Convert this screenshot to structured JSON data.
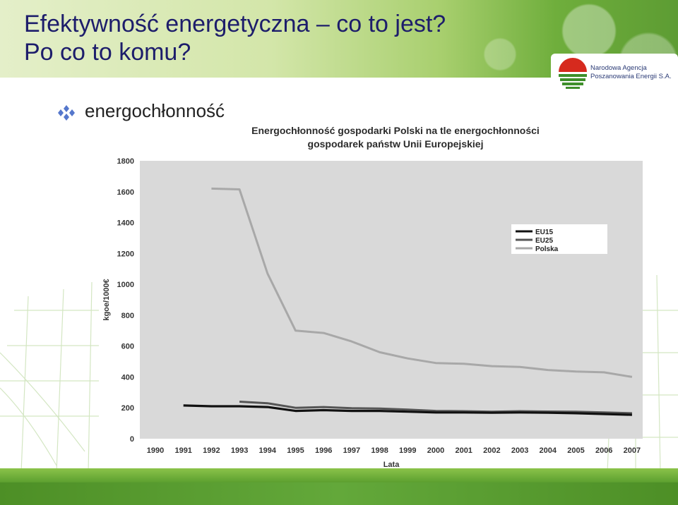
{
  "slide": {
    "title_line1": "Efektywność energetyczna – co to jest?",
    "title_line2": "Po co to komu?",
    "bullet_text": "energochłonność",
    "logo": {
      "line1": "Narodowa Agencja",
      "line2": "Poszanowania Energii S.A."
    },
    "colors": {
      "title": "#1d1d6b",
      "brand_green": "#5a9e2e",
      "logo_red": "#d62a1e"
    }
  },
  "chart_data": {
    "type": "line",
    "title_line1": "Energochłonność gospodarki Polski na tle energochłonności",
    "title_line2": "gospodarek państw Unii Europejskiej",
    "xlabel": "Lata",
    "ylabel": "kgoe/1000€",
    "x": [
      "1990",
      "1991",
      "1992",
      "1993",
      "1994",
      "1995",
      "1996",
      "1997",
      "1998",
      "1999",
      "2000",
      "2001",
      "2002",
      "2003",
      "2004",
      "2005",
      "2006",
      "2007"
    ],
    "ylim": [
      0,
      1800
    ],
    "yticks": [
      0,
      200,
      400,
      600,
      800,
      1000,
      1200,
      1400,
      1600,
      1800
    ],
    "grid": false,
    "legend_position": "right",
    "series": [
      {
        "name": "EU15",
        "color": "#111111",
        "values": [
          null,
          215,
          210,
          210,
          205,
          180,
          185,
          180,
          180,
          175,
          170,
          170,
          168,
          170,
          168,
          165,
          160,
          155
        ]
      },
      {
        "name": "EU25",
        "color": "#555555",
        "values": [
          null,
          null,
          null,
          240,
          230,
          200,
          205,
          198,
          195,
          188,
          180,
          178,
          175,
          178,
          176,
          175,
          170,
          165
        ]
      },
      {
        "name": "Polska",
        "color": "#a8a8a8",
        "values": [
          null,
          null,
          1620,
          1615,
          1070,
          700,
          685,
          630,
          560,
          520,
          490,
          485,
          470,
          465,
          445,
          435,
          430,
          400
        ]
      }
    ]
  }
}
